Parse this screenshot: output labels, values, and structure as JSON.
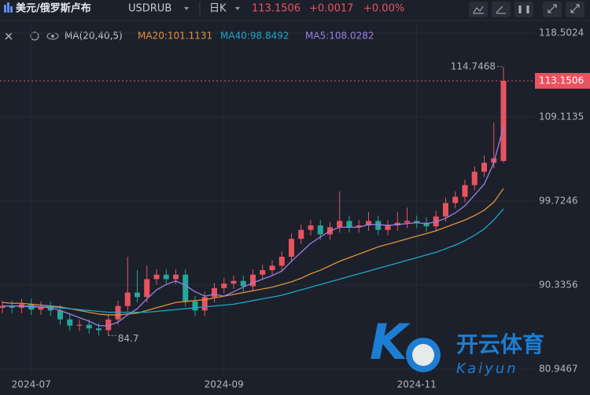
{
  "header": {
    "symbol_name": "美元/俄罗斯卢布",
    "symbol": "USDRUB",
    "interval": "日K",
    "change": "+0.0017",
    "change_pct": "+0.00%"
  },
  "watermark": {
    "text": "开云体育",
    "latin": "Kaiyun"
  },
  "chart_data": {
    "type": "candlestick",
    "indicator": "MA(20,40,5)",
    "categories": [
      null,
      null,
      null,
      "2024-07",
      null,
      null,
      null,
      null,
      null,
      null,
      null,
      null,
      null,
      null,
      null,
      null,
      null,
      null,
      null,
      null,
      null,
      null,
      null,
      "2024-09",
      null,
      null,
      null,
      null,
      null,
      null,
      null,
      null,
      null,
      null,
      null,
      null,
      null,
      null,
      null,
      null,
      null,
      null,
      null,
      "2024-11",
      null,
      null,
      null,
      null,
      null,
      null,
      null,
      null,
      null
    ],
    "open": [
      87.8,
      88.0,
      87.8,
      88.2,
      87.6,
      87.9,
      87.5,
      86.5,
      85.8,
      85.9,
      85.5,
      85.3,
      86.5,
      88.0,
      89.5,
      89.0,
      91.0,
      91.5,
      91.0,
      91.5,
      88.5,
      87.5,
      89.0,
      90.0,
      90.5,
      90.8,
      90.2,
      91.5,
      92.0,
      92.5,
      93.5,
      95.5,
      96.5,
      97.0,
      96.0,
      96.8,
      97.5,
      96.8,
      97.0,
      97.5,
      96.5,
      97.0,
      97.3,
      97.5,
      97.3,
      96.9,
      98.0,
      99.5,
      100.2,
      101.5,
      103.0,
      104.0,
      104.2
    ],
    "high": [
      88.6,
      88.6,
      88.8,
      88.8,
      88.5,
      88.5,
      88.1,
      87.1,
      86.5,
      86.5,
      86.1,
      87.1,
      88.6,
      93.5,
      92.0,
      92.5,
      92.1,
      92.1,
      92.1,
      92.1,
      89.1,
      89.6,
      90.6,
      91.1,
      91.4,
      91.4,
      92.1,
      92.6,
      93.1,
      94.1,
      96.1,
      97.1,
      97.6,
      97.6,
      97.4,
      100.8,
      98.1,
      97.6,
      98.5,
      98.1,
      97.6,
      98.5,
      99.0,
      98.1,
      97.9,
      98.6,
      100.1,
      100.8,
      102.1,
      103.6,
      104.8,
      108.5,
      114.7468
    ],
    "low": [
      87.2,
      87.2,
      87.2,
      87.0,
      87.0,
      86.9,
      85.9,
      85.2,
      85.2,
      84.9,
      84.7023,
      84.7,
      85.9,
      87.4,
      88.4,
      88.4,
      90.4,
      90.4,
      90.4,
      87.9,
      86.9,
      86.9,
      88.4,
      89.4,
      89.9,
      89.6,
      89.6,
      90.9,
      91.4,
      91.9,
      92.9,
      94.9,
      95.9,
      95.4,
      95.4,
      96.2,
      96.2,
      96.2,
      96.4,
      95.9,
      95.9,
      96.4,
      96.7,
      96.7,
      96.3,
      96.3,
      97.4,
      98.9,
      99.6,
      100.9,
      102.4,
      103.4,
      104.0
    ],
    "close": [
      88.0,
      87.8,
      88.2,
      87.6,
      87.9,
      87.5,
      86.5,
      85.8,
      85.9,
      85.5,
      85.3,
      86.5,
      88.0,
      89.5,
      89.0,
      91.0,
      91.5,
      91.0,
      91.5,
      88.5,
      87.5,
      89.0,
      90.0,
      90.5,
      90.8,
      90.2,
      91.5,
      92.0,
      92.5,
      93.5,
      95.5,
      96.5,
      97.0,
      96.0,
      96.8,
      97.5,
      96.8,
      97.0,
      97.5,
      96.5,
      97.0,
      97.3,
      97.5,
      97.3,
      96.9,
      98.0,
      99.5,
      100.2,
      101.5,
      103.0,
      104.0,
      104.5,
      113.1506
    ],
    "up_color": "#e8535f",
    "down_color": "#26a69a",
    "series": [
      {
        "name": "MA20:101.1131",
        "color": "#e0913c",
        "values": [
          88.4,
          88.3,
          88.3,
          88.2,
          88.1,
          88.0,
          87.9,
          87.7,
          87.5,
          87.3,
          87.1,
          87.0,
          87.0,
          87.1,
          87.2,
          87.5,
          87.8,
          88.1,
          88.4,
          88.5,
          88.6,
          88.7,
          88.9,
          89.1,
          89.3,
          89.5,
          89.7,
          89.9,
          90.1,
          90.4,
          90.7,
          91.1,
          91.6,
          92.0,
          92.5,
          93.0,
          93.4,
          93.8,
          94.2,
          94.6,
          94.9,
          95.2,
          95.5,
          95.8,
          96.1,
          96.4,
          96.8,
          97.2,
          97.6,
          98.1,
          98.7,
          99.6,
          101.1131
        ]
      },
      {
        "name": "MA40:98.8492",
        "color": "#1fa7c6",
        "values": [
          88.0,
          88.0,
          88.0,
          88.0,
          87.9,
          87.9,
          87.8,
          87.7,
          87.6,
          87.5,
          87.4,
          87.3,
          87.3,
          87.3,
          87.3,
          87.3,
          87.4,
          87.5,
          87.6,
          87.7,
          87.8,
          87.9,
          88.0,
          88.1,
          88.2,
          88.4,
          88.6,
          88.8,
          89.0,
          89.2,
          89.5,
          89.8,
          90.1,
          90.4,
          90.7,
          91.0,
          91.3,
          91.6,
          91.9,
          92.2,
          92.5,
          92.8,
          93.1,
          93.4,
          93.7,
          94.0,
          94.4,
          94.8,
          95.3,
          95.9,
          96.6,
          97.6,
          98.8492
        ]
      },
      {
        "name": "MA5:108.0282",
        "color": "#9c7fe0",
        "values": [
          88.0,
          88.0,
          88.0,
          87.9,
          87.9,
          87.8,
          87.5,
          87.1,
          86.7,
          86.3,
          85.8,
          85.8,
          86.2,
          87.0,
          87.7,
          88.8,
          89.8,
          90.4,
          90.8,
          90.3,
          89.6,
          89.1,
          89.3,
          89.1,
          89.6,
          90.1,
          90.6,
          91.0,
          91.4,
          91.9,
          93.0,
          94.0,
          95.0,
          95.7,
          96.4,
          96.8,
          96.8,
          96.8,
          97.1,
          97.1,
          97.0,
          97.1,
          97.2,
          97.3,
          97.2,
          97.4,
          97.8,
          98.4,
          99.2,
          100.4,
          101.6,
          104.0,
          108.0282
        ]
      }
    ],
    "ylim": [
      80.25,
      119.55
    ],
    "yticks": [
      80.9467,
      90.3356,
      99.7246,
      109.1135,
      118.5024
    ],
    "grid": true
  }
}
